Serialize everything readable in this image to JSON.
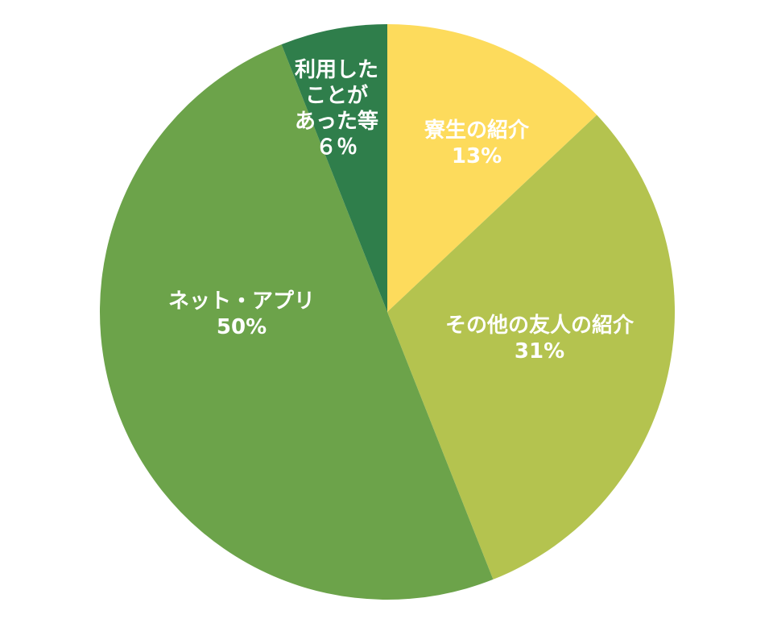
{
  "chart_data": {
    "type": "pie",
    "categories": [
      "寮生の紹介",
      "その他の友人の紹介",
      "ネット・アプリ",
      "利用した\nことが\nあった等"
    ],
    "values": [
      13,
      31,
      50,
      6
    ],
    "value_labels": [
      "13%",
      "31%",
      "50%",
      "６％"
    ],
    "colors": [
      "#fddb5c",
      "#b4c34f",
      "#6ca34a",
      "#2f7e4b"
    ],
    "start_angle": 0,
    "direction": "clockwise"
  }
}
